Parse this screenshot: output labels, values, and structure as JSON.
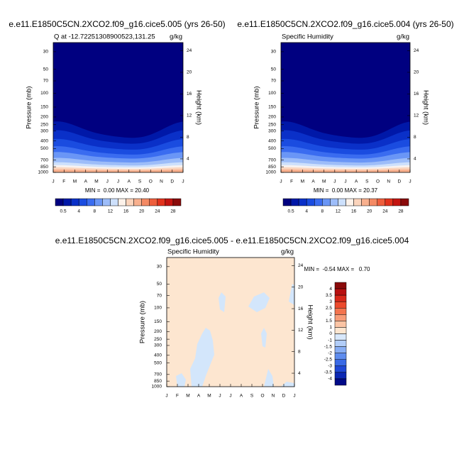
{
  "chart_data": [
    {
      "type": "contour",
      "title": "e.e11.E1850C5CN.2XCO2.f09_g16.cice5.005 (yrs 26-50)",
      "subtitle": "Q at -12.72251308900523,131.25",
      "units": "g/kg",
      "ylabel": "Pressure (mb)",
      "y2label": "Height (km)",
      "categories": [
        "J",
        "F",
        "M",
        "A",
        "M",
        "J",
        "J",
        "A",
        "S",
        "O",
        "N",
        "D",
        "J"
      ],
      "log_y": true,
      "ylim": [
        1000,
        23
      ],
      "yticks": [
        30,
        50,
        70,
        100,
        150,
        200,
        250,
        300,
        400,
        500,
        700,
        850,
        1000
      ],
      "y2lim": [
        1.5,
        25.5
      ],
      "y2ticks": [
        4,
        8,
        12,
        16,
        20,
        24
      ],
      "stats": "MIN =  0.00 MAX = 20.40",
      "colorbar": "horizontal",
      "colorbar_labels": [
        0.5,
        4,
        8,
        12,
        16,
        20,
        24,
        28
      ],
      "colorbar_colors": [
        "#000080",
        "#0018a8",
        "#0a30c8",
        "#1a4ce0",
        "#3a6cf0",
        "#6a96f6",
        "#9dbdf9",
        "#cde0fc",
        "#fdf2ea",
        "#fbd4bc",
        "#f8b08e",
        "#f48a64",
        "#ee5e3c",
        "#e2321c",
        "#c41410",
        "#8a0a0a"
      ]
    },
    {
      "type": "contour",
      "title": "e.e11.E1850C5CN.2XCO2.f09_g16.cice5.004 (yrs 26-50)",
      "subtitle": "Specific Humidity",
      "units": "g/kg",
      "ylabel": "Pressure (mb)",
      "y2label": "Height (km)",
      "categories": [
        "J",
        "F",
        "M",
        "A",
        "M",
        "J",
        "J",
        "A",
        "S",
        "O",
        "N",
        "D",
        "J"
      ],
      "log_y": true,
      "ylim": [
        1000,
        23
      ],
      "yticks": [
        30,
        50,
        70,
        100,
        150,
        200,
        250,
        300,
        400,
        500,
        700,
        850,
        1000
      ],
      "y2lim": [
        1.5,
        25.5
      ],
      "y2ticks": [
        4,
        8,
        12,
        16,
        20,
        24
      ],
      "stats": "MIN =  0.00 MAX = 20.37",
      "colorbar": "horizontal",
      "colorbar_labels": [
        0.5,
        4,
        8,
        12,
        16,
        20,
        24,
        28
      ],
      "colorbar_colors": [
        "#000080",
        "#0018a8",
        "#0a30c8",
        "#1a4ce0",
        "#3a6cf0",
        "#6a96f6",
        "#9dbdf9",
        "#cde0fc",
        "#fdf2ea",
        "#fbd4bc",
        "#f8b08e",
        "#f48a64",
        "#ee5e3c",
        "#e2321c",
        "#c41410",
        "#8a0a0a"
      ]
    },
    {
      "type": "contour-diff",
      "title": "e.e11.E1850C5CN.2XCO2.f09_g16.cice5.005 - e.e11.E1850C5CN.2XCO2.f09_g16.cice5.004",
      "subtitle": "Specific Humidity",
      "units": "g/kg",
      "ylabel": "Pressure (mb)",
      "y2label": "Height (km)",
      "categories": [
        "J",
        "F",
        "M",
        "A",
        "M",
        "J",
        "J",
        "A",
        "S",
        "O",
        "N",
        "D",
        "J"
      ],
      "log_y": true,
      "ylim": [
        1000,
        23
      ],
      "yticks": [
        30,
        50,
        70,
        100,
        150,
        200,
        250,
        300,
        400,
        500,
        700,
        850,
        1000
      ],
      "y2lim": [
        1.5,
        25.5
      ],
      "y2ticks": [
        4,
        8,
        12,
        16,
        20,
        24
      ],
      "stats": "MIN =  -0.54 MAX =   0.70",
      "colorbar": "vertical",
      "colorbar_labels": [
        4,
        3.5,
        3,
        2.5,
        2,
        1.5,
        1,
        0,
        -1,
        -1.5,
        -2,
        -2.5,
        -3,
        -3.5,
        -4
      ],
      "colorbar_colors": [
        "#8a0a0a",
        "#b81010",
        "#d8281a",
        "#ec4a2c",
        "#f4744e",
        "#f89c78",
        "#fbc4a4",
        "#fde6d0",
        "#d8e8fb",
        "#b2cdf8",
        "#88aef4",
        "#5e8cee",
        "#3a6ae6",
        "#2048d6",
        "#0c28b4",
        "#000a88"
      ]
    }
  ]
}
